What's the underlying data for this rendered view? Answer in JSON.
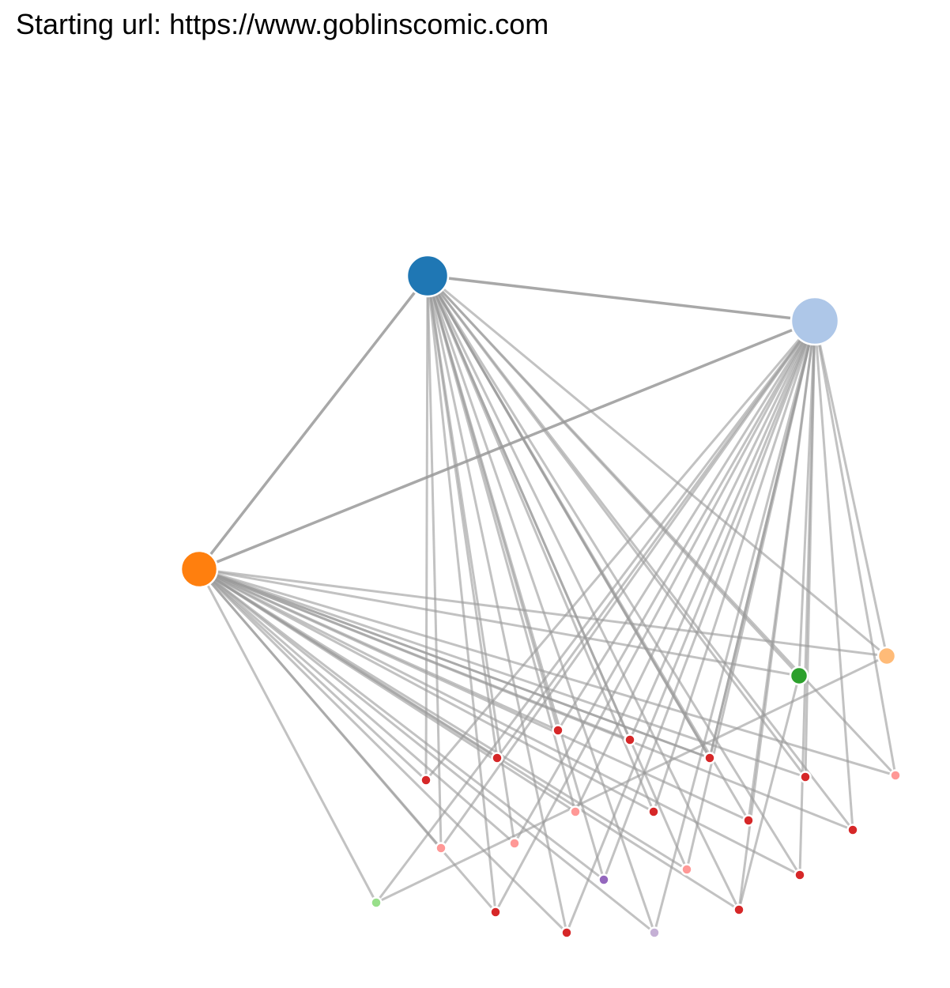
{
  "header": {
    "title": "Starting url: https://www.goblinscomic.com"
  },
  "graph": {
    "nodes": [
      {
        "id": "n0",
        "group": "blue",
        "color": "#1f77b4",
        "size": "large"
      },
      {
        "id": "n1",
        "group": "light-blue",
        "color": "#aec7e8",
        "size": "large"
      },
      {
        "id": "n2",
        "group": "orange",
        "color": "#ff7f0e",
        "size": "large"
      },
      {
        "id": "n3",
        "group": "green",
        "color": "#2ca02c",
        "size": "medium"
      },
      {
        "id": "n4",
        "group": "light-orange",
        "color": "#ffbb78",
        "size": "medium"
      },
      {
        "id": "r1",
        "group": "red",
        "color": "#d62728",
        "size": "small"
      },
      {
        "id": "r2",
        "group": "red",
        "color": "#d62728",
        "size": "small"
      },
      {
        "id": "r3",
        "group": "red",
        "color": "#d62728",
        "size": "small"
      },
      {
        "id": "r4",
        "group": "red",
        "color": "#d62728",
        "size": "small"
      },
      {
        "id": "r5",
        "group": "red",
        "color": "#d62728",
        "size": "small"
      },
      {
        "id": "r6",
        "group": "red",
        "color": "#d62728",
        "size": "small"
      },
      {
        "id": "r7",
        "group": "red",
        "color": "#d62728",
        "size": "small"
      },
      {
        "id": "r8",
        "group": "red",
        "color": "#d62728",
        "size": "small"
      },
      {
        "id": "r9",
        "group": "red",
        "color": "#d62728",
        "size": "small"
      },
      {
        "id": "r10",
        "group": "red",
        "color": "#d62728",
        "size": "small"
      },
      {
        "id": "r11",
        "group": "red",
        "color": "#d62728",
        "size": "small"
      },
      {
        "id": "r12",
        "group": "red",
        "color": "#d62728",
        "size": "small"
      },
      {
        "id": "r13",
        "group": "red",
        "color": "#d62728",
        "size": "small"
      },
      {
        "id": "r14",
        "group": "red",
        "color": "#d62728",
        "size": "small"
      },
      {
        "id": "p1",
        "group": "pink",
        "color": "#ff9896",
        "size": "small"
      },
      {
        "id": "p2",
        "group": "pink",
        "color": "#ff9896",
        "size": "small"
      },
      {
        "id": "p3",
        "group": "pink",
        "color": "#ff9896",
        "size": "small"
      },
      {
        "id": "p4",
        "group": "pink",
        "color": "#ff9896",
        "size": "small"
      },
      {
        "id": "p5",
        "group": "pink",
        "color": "#ff9896",
        "size": "small"
      },
      {
        "id": "g1",
        "group": "light-green",
        "color": "#98df8a",
        "size": "small"
      },
      {
        "id": "v1",
        "group": "purple",
        "color": "#9467bd",
        "size": "small"
      },
      {
        "id": "l1",
        "group": "lavender",
        "color": "#c5b0d5",
        "size": "small"
      }
    ],
    "edges": [
      [
        "n0",
        "n1"
      ],
      [
        "n0",
        "n2"
      ],
      [
        "n1",
        "n2"
      ],
      [
        "n0",
        "n3"
      ],
      [
        "n0",
        "n4"
      ],
      [
        "n1",
        "n3"
      ],
      [
        "n1",
        "n4"
      ],
      [
        "n2",
        "n3"
      ],
      [
        "n2",
        "n4"
      ],
      [
        "n0",
        "r1"
      ],
      [
        "n0",
        "r2"
      ],
      [
        "n0",
        "r3"
      ],
      [
        "n0",
        "r4"
      ],
      [
        "n0",
        "r5"
      ],
      [
        "n0",
        "r6"
      ],
      [
        "n0",
        "r7"
      ],
      [
        "n0",
        "r8"
      ],
      [
        "n0",
        "r9"
      ],
      [
        "n0",
        "r10"
      ],
      [
        "n0",
        "r11"
      ],
      [
        "n0",
        "r12"
      ],
      [
        "n0",
        "r13"
      ],
      [
        "n0",
        "r14"
      ],
      [
        "n0",
        "p1"
      ],
      [
        "n0",
        "p2"
      ],
      [
        "n0",
        "p3"
      ],
      [
        "n0",
        "p4"
      ],
      [
        "n0",
        "p5"
      ],
      [
        "n0",
        "v1"
      ],
      [
        "n0",
        "l1"
      ],
      [
        "n1",
        "r1"
      ],
      [
        "n1",
        "r2"
      ],
      [
        "n1",
        "r3"
      ],
      [
        "n1",
        "r4"
      ],
      [
        "n1",
        "r5"
      ],
      [
        "n1",
        "r6"
      ],
      [
        "n1",
        "r7"
      ],
      [
        "n1",
        "r8"
      ],
      [
        "n1",
        "r9"
      ],
      [
        "n1",
        "r10"
      ],
      [
        "n1",
        "r11"
      ],
      [
        "n1",
        "r12"
      ],
      [
        "n1",
        "r13"
      ],
      [
        "n1",
        "r14"
      ],
      [
        "n1",
        "p1"
      ],
      [
        "n1",
        "p2"
      ],
      [
        "n1",
        "p3"
      ],
      [
        "n1",
        "p4"
      ],
      [
        "n1",
        "p5"
      ],
      [
        "n1",
        "v1"
      ],
      [
        "n1",
        "l1"
      ],
      [
        "n1",
        "g1"
      ],
      [
        "n2",
        "r1"
      ],
      [
        "n2",
        "r2"
      ],
      [
        "n2",
        "r3"
      ],
      [
        "n2",
        "r4"
      ],
      [
        "n2",
        "r5"
      ],
      [
        "n2",
        "r6"
      ],
      [
        "n2",
        "r7"
      ],
      [
        "n2",
        "r8"
      ],
      [
        "n2",
        "r9"
      ],
      [
        "n2",
        "r10"
      ],
      [
        "n2",
        "r11"
      ],
      [
        "n2",
        "r12"
      ],
      [
        "n2",
        "r13"
      ],
      [
        "n2",
        "r14"
      ],
      [
        "n2",
        "p1"
      ],
      [
        "n2",
        "p2"
      ],
      [
        "n2",
        "p3"
      ],
      [
        "n2",
        "p4"
      ],
      [
        "n2",
        "p5"
      ],
      [
        "n2",
        "v1"
      ],
      [
        "n2",
        "l1"
      ],
      [
        "n2",
        "g1"
      ],
      [
        "n4",
        "g1"
      ],
      [
        "n3",
        "r12"
      ]
    ]
  }
}
